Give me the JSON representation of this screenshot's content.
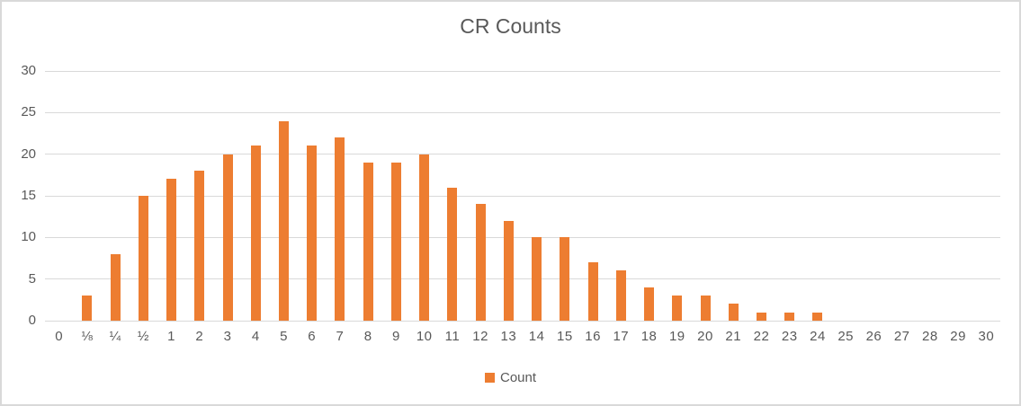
{
  "chart_data": {
    "type": "bar",
    "title": "CR Counts",
    "series_name": "Count",
    "categories": [
      "0",
      "⅛",
      "¼",
      "½",
      "1",
      "2",
      "3",
      "4",
      "5",
      "6",
      "7",
      "8",
      "9",
      "10",
      "11",
      "12",
      "13",
      "14",
      "15",
      "16",
      "17",
      "18",
      "19",
      "20",
      "21",
      "22",
      "23",
      "24",
      "25",
      "26",
      "27",
      "28",
      "29",
      "30"
    ],
    "values": [
      0,
      3,
      8,
      15,
      17,
      18,
      20,
      21,
      24,
      21,
      22,
      19,
      19,
      20,
      16,
      14,
      12,
      10,
      10,
      7,
      6,
      4,
      3,
      3,
      2,
      1,
      1,
      1,
      0,
      0,
      0,
      0,
      0,
      0
    ],
    "xlabel": "",
    "ylabel": "",
    "ylim": [
      0,
      30
    ],
    "yticks": [
      0,
      5,
      10,
      15,
      20,
      25,
      30
    ],
    "grid": true,
    "legend_position": "bottom",
    "colors": {
      "bar": "#ED7D31",
      "gridline": "#D9D9D9",
      "axis_text": "#595959",
      "title_text": "#595959",
      "frame_border": "#D9D9D9"
    }
  }
}
